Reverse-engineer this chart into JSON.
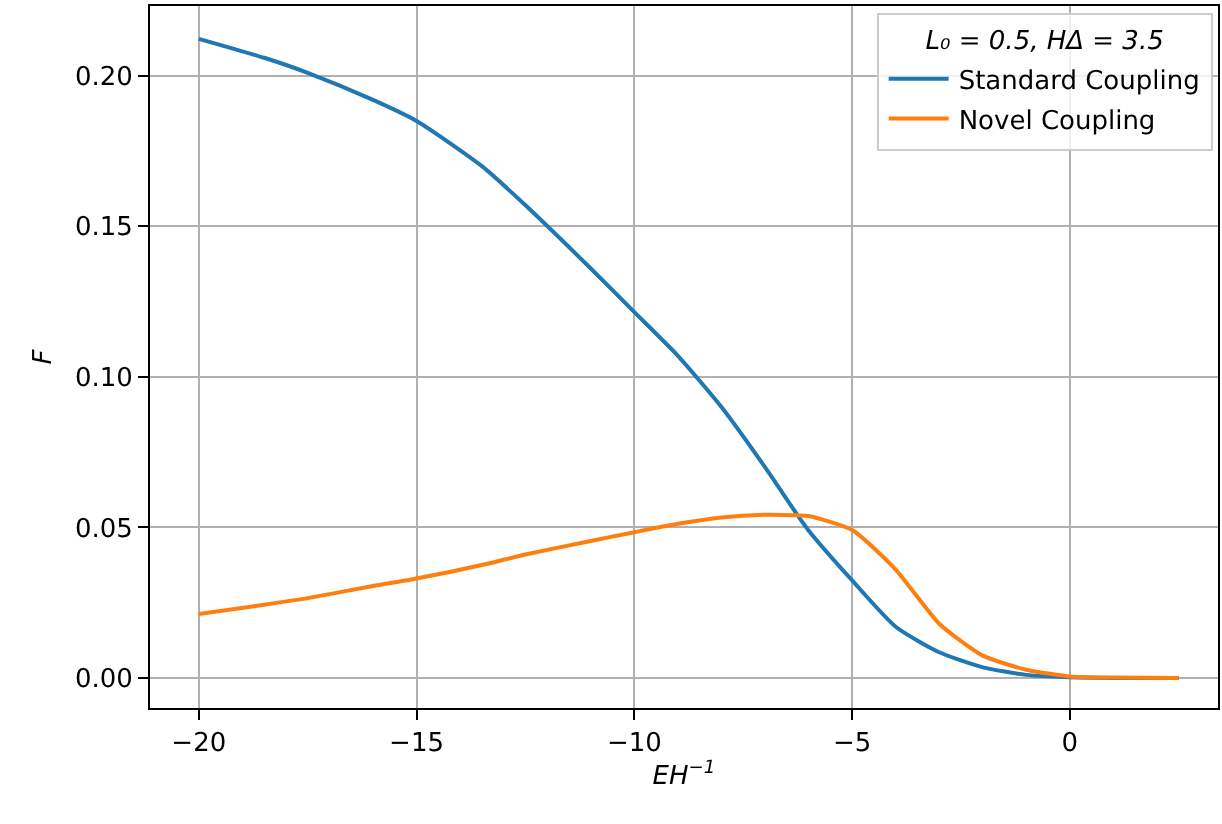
{
  "chart_data": {
    "type": "line",
    "xlabel": "EH$^{−1}$",
    "ylabel": "F",
    "legend_title": "L₀ = 0.5, HΔ = 3.5",
    "xlim": [
      -21.12,
      3.4
    ],
    "ylim": [
      -0.01,
      0.2232
    ],
    "xticks": [
      {
        "value": -20,
        "label": "−20"
      },
      {
        "value": -15,
        "label": "−15"
      },
      {
        "value": -10,
        "label": "−10"
      },
      {
        "value": -5,
        "label": "−5"
      },
      0
    ],
    "yticks": [
      {
        "value": 0,
        "label": "0.00"
      },
      {
        "value": 0.05,
        "label": "0.05"
      },
      {
        "value": 0.1,
        "label": "0.10"
      },
      {
        "value": 0.15,
        "label": "0.15"
      },
      {
        "value": 0.2,
        "label": "0.20"
      }
    ],
    "grid": true,
    "legend": "top right",
    "line_style": "solid",
    "marker": "none",
    "x": [
      -20,
      -18.5,
      -17.5,
      -16,
      -15,
      -13.5,
      -12.5,
      -11,
      -10,
      -9,
      -8,
      -7,
      -6.25,
      -6,
      -5,
      -4,
      -3,
      -2,
      -1,
      0,
      1,
      2.5
    ],
    "series": [
      {
        "name": "Standard Coupling",
        "color": "#1f77b4",
        "values": [
          0.2123,
          0.206,
          0.201,
          0.192,
          0.185,
          0.17,
          0.157,
          0.136,
          0.1215,
          0.107,
          0.09,
          0.07,
          0.054,
          0.049,
          0.0324,
          0.017,
          0.0085,
          0.0035,
          0.001,
          0.0002,
          0.0,
          0.0
        ]
      },
      {
        "name": "Novel Coupling",
        "color": "#ff7f0e",
        "values": [
          0.0212,
          0.0243,
          0.0265,
          0.0305,
          0.033,
          0.0375,
          0.041,
          0.0455,
          0.0484,
          0.0512,
          0.0533,
          0.0542,
          0.054,
          0.0538,
          0.0491,
          0.036,
          0.018,
          0.0074,
          0.0027,
          0.0005,
          0.0001,
          0.0
        ]
      }
    ]
  }
}
